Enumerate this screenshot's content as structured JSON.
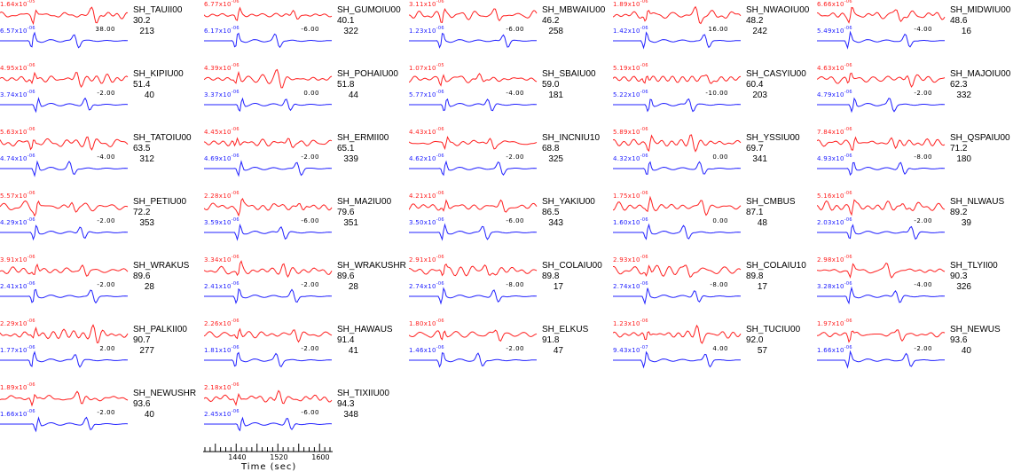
{
  "colors": {
    "synthetic": "#ff2020",
    "observed": "#2020ff"
  },
  "stations": [
    {
      "name": "SH_TAUII00",
      "dist": "30.2",
      "az": "213",
      "amp_top": "1.64x10",
      "exp_top": "-05",
      "amp_bot": "6.57x10",
      "exp_bot": "-06",
      "shift": "38.00"
    },
    {
      "name": "SH_GUMOIU00",
      "dist": "40.1",
      "az": "322",
      "amp_top": "6.77x10",
      "exp_top": "-06",
      "amp_bot": "6.17x10",
      "exp_bot": "-06",
      "shift": "-6.00"
    },
    {
      "name": "SH_MBWAIU00",
      "dist": "46.2",
      "az": "258",
      "amp_top": "3.11x10",
      "exp_top": "-06",
      "amp_bot": "1.23x10",
      "exp_bot": "-06",
      "shift": "-6.00"
    },
    {
      "name": "SH_NWAOIU00",
      "dist": "48.2",
      "az": "242",
      "amp_top": "1.89x10",
      "exp_top": "-06",
      "amp_bot": "1.42x10",
      "exp_bot": "-06",
      "shift": "16.00"
    },
    {
      "name": "SH_MIDWIU00",
      "dist": "48.6",
      "az": "16",
      "amp_top": "6.66x10",
      "exp_top": "-06",
      "amp_bot": "5.49x10",
      "exp_bot": "-06",
      "shift": "-4.00"
    },
    {
      "name": "SH_KIPIU00",
      "dist": "51.4",
      "az": "40",
      "amp_top": "4.95x10",
      "exp_top": "-06",
      "amp_bot": "3.74x10",
      "exp_bot": "-06",
      "shift": "-2.00"
    },
    {
      "name": "SH_POHAIU00",
      "dist": "51.8",
      "az": "44",
      "amp_top": "4.39x10",
      "exp_top": "-06",
      "amp_bot": "3.37x10",
      "exp_bot": "-06",
      "shift": "0.00"
    },
    {
      "name": "SH_SBAIU00",
      "dist": "59.0",
      "az": "181",
      "amp_top": "1.07x10",
      "exp_top": "-05",
      "amp_bot": "5.77x10",
      "exp_bot": "-06",
      "shift": "-4.00"
    },
    {
      "name": "SH_CASYIU00",
      "dist": "60.4",
      "az": "203",
      "amp_top": "5.19x10",
      "exp_top": "-06",
      "amp_bot": "5.22x10",
      "exp_bot": "-06",
      "shift": "-10.00"
    },
    {
      "name": "SH_MAJOIU00",
      "dist": "62.3",
      "az": "332",
      "amp_top": "4.63x10",
      "exp_top": "-06",
      "amp_bot": "4.79x10",
      "exp_bot": "-06",
      "shift": "-2.00"
    },
    {
      "name": "SH_TATOIU00",
      "dist": "63.5",
      "az": "312",
      "amp_top": "5.63x10",
      "exp_top": "-06",
      "amp_bot": "4.74x10",
      "exp_bot": "-06",
      "shift": "-4.00"
    },
    {
      "name": "SH_ERMII00",
      "dist": "65.1",
      "az": "339",
      "amp_top": "4.45x10",
      "exp_top": "-06",
      "amp_bot": "4.69x10",
      "exp_bot": "-06",
      "shift": "-2.00"
    },
    {
      "name": "SH_INCNIU10",
      "dist": "68.8",
      "az": "325",
      "amp_top": "4.43x10",
      "exp_top": "-06",
      "amp_bot": "4.62x10",
      "exp_bot": "-06",
      "shift": "-2.00"
    },
    {
      "name": "SH_YSSIU00",
      "dist": "69.7",
      "az": "341",
      "amp_top": "5.89x10",
      "exp_top": "-06",
      "amp_bot": "4.32x10",
      "exp_bot": "-06",
      "shift": "0.00"
    },
    {
      "name": "SH_QSPAIU00",
      "dist": "71.2",
      "az": "180",
      "amp_top": "7.84x10",
      "exp_top": "-06",
      "amp_bot": "4.93x10",
      "exp_bot": "-06",
      "shift": "-8.00"
    },
    {
      "name": "SH_PETIU00",
      "dist": "72.2",
      "az": "353",
      "amp_top": "5.57x10",
      "exp_top": "-06",
      "amp_bot": "4.29x10",
      "exp_bot": "-06",
      "shift": "-2.00"
    },
    {
      "name": "SH_MA2IU00",
      "dist": "79.6",
      "az": "351",
      "amp_top": "2.28x10",
      "exp_top": "-06",
      "amp_bot": "3.59x10",
      "exp_bot": "-06",
      "shift": "-6.00"
    },
    {
      "name": "SH_YAKIU00",
      "dist": "86.5",
      "az": "343",
      "amp_top": "4.21x10",
      "exp_top": "-06",
      "amp_bot": "3.50x10",
      "exp_bot": "-06",
      "shift": "-6.00"
    },
    {
      "name": "SH_CMBUS",
      "dist": "87.1",
      "az": "48",
      "amp_top": "1.75x10",
      "exp_top": "-06",
      "amp_bot": "1.60x10",
      "exp_bot": "-06",
      "shift": "0.00"
    },
    {
      "name": "SH_NLWAUS",
      "dist": "89.2",
      "az": "39",
      "amp_top": "5.16x10",
      "exp_top": "-06",
      "amp_bot": "2.03x10",
      "exp_bot": "-06",
      "shift": "-2.00"
    },
    {
      "name": "SH_WRAKUS",
      "dist": "89.6",
      "az": "28",
      "amp_top": "3.91x10",
      "exp_top": "-06",
      "amp_bot": "2.41x10",
      "exp_bot": "-06",
      "shift": "-2.00"
    },
    {
      "name": "SH_WRAKUSHR",
      "dist": "89.6",
      "az": "28",
      "amp_top": "3.34x10",
      "exp_top": "-06",
      "amp_bot": "2.41x10",
      "exp_bot": "-06",
      "shift": "-2.00"
    },
    {
      "name": "SH_COLAIU00",
      "dist": "89.8",
      "az": "17",
      "amp_top": "2.91x10",
      "exp_top": "-06",
      "amp_bot": "2.74x10",
      "exp_bot": "-06",
      "shift": "-8.00"
    },
    {
      "name": "SH_COLAIU10",
      "dist": "89.8",
      "az": "17",
      "amp_top": "2.93x10",
      "exp_top": "-06",
      "amp_bot": "2.74x10",
      "exp_bot": "-06",
      "shift": "-8.00"
    },
    {
      "name": "SH_TLYII00",
      "dist": "90.3",
      "az": "326",
      "amp_top": "2.98x10",
      "exp_top": "-06",
      "amp_bot": "3.28x10",
      "exp_bot": "-06",
      "shift": "-4.00"
    },
    {
      "name": "SH_PALKII00",
      "dist": "90.7",
      "az": "277",
      "amp_top": "2.29x10",
      "exp_top": "-06",
      "amp_bot": "1.77x10",
      "exp_bot": "-06",
      "shift": "2.00"
    },
    {
      "name": "SH_HAWAUS",
      "dist": "91.4",
      "az": "41",
      "amp_top": "2.26x10",
      "exp_top": "-06",
      "amp_bot": "1.81x10",
      "exp_bot": "-06",
      "shift": "-2.00"
    },
    {
      "name": "SH_ELKUS",
      "dist": "91.8",
      "az": "47",
      "amp_top": "1.80x10",
      "exp_top": "-06",
      "amp_bot": "1.46x10",
      "exp_bot": "-06",
      "shift": "-2.00"
    },
    {
      "name": "SH_TUCIU00",
      "dist": "92.0",
      "az": "57",
      "amp_top": "1.23x10",
      "exp_top": "-06",
      "amp_bot": "9.43x10",
      "exp_bot": "-07",
      "shift": "4.00"
    },
    {
      "name": "SH_NEWUS",
      "dist": "93.6",
      "az": "40",
      "amp_top": "1.97x10",
      "exp_top": "-06",
      "amp_bot": "1.66x10",
      "exp_bot": "-06",
      "shift": "-2.00"
    },
    {
      "name": "SH_NEWUSHR",
      "dist": "93.6",
      "az": "40",
      "amp_top": "1.89x10",
      "exp_top": "-06",
      "amp_bot": "1.66x10",
      "exp_bot": "-06",
      "shift": "-2.00"
    },
    {
      "name": "SH_TIXIIU00",
      "dist": "94.3",
      "az": "348",
      "amp_top": "2.18x10",
      "exp_top": "-06",
      "amp_bot": "2.45x10",
      "exp_bot": "-06",
      "shift": "-6.00"
    }
  ],
  "chart_data": {
    "type": "line",
    "title": "",
    "xlabel": "Time (sec)",
    "xticks": [
      "1440",
      "1520",
      "1600"
    ],
    "xlim": [
      1380,
      1625
    ],
    "series": [
      "synthetic (red)",
      "observed (blue)"
    ]
  }
}
